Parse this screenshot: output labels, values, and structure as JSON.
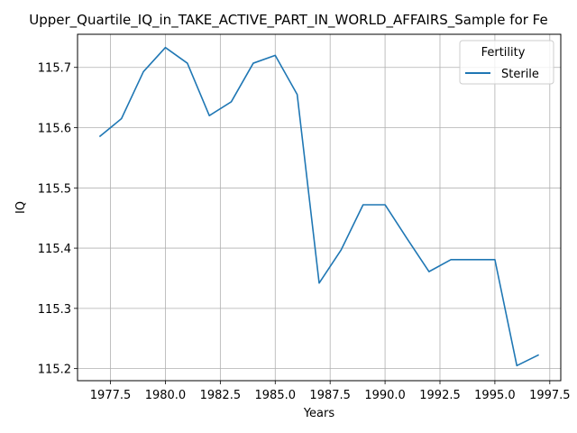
{
  "chart_data": {
    "type": "line",
    "title": "Upper_Quartile_IQ_in_TAKE_ACTIVE_PART_IN_WORLD_AFFAIRS_Sample for Fe",
    "xlabel": "Years",
    "ylabel": "IQ",
    "xlim": [
      1976.0,
      1998.0
    ],
    "ylim": [
      115.18,
      115.755
    ],
    "xticks": [
      1977.5,
      1980.0,
      1982.5,
      1985.0,
      1987.5,
      1990.0,
      1992.5,
      1995.0,
      1997.5
    ],
    "xtick_labels": [
      "1977.5",
      "1980.0",
      "1982.5",
      "1985.0",
      "1987.5",
      "1990.0",
      "1992.5",
      "1995.0",
      "1997.5"
    ],
    "yticks": [
      115.2,
      115.3,
      115.4,
      115.5,
      115.6,
      115.7
    ],
    "ytick_labels": [
      "115.2",
      "115.3",
      "115.4",
      "115.5",
      "115.6",
      "115.7"
    ],
    "grid": true,
    "legend": {
      "title": "Fertility",
      "placement": "top-right"
    },
    "series": [
      {
        "name": "Sterile",
        "color": "#1f77b4",
        "x": [
          1977,
          1978,
          1979,
          1980,
          1981,
          1982,
          1983,
          1984,
          1985,
          1986,
          1987,
          1988,
          1989,
          1990,
          1991,
          1992,
          1993,
          1994,
          1995,
          1996,
          1997
        ],
        "y": [
          115.585,
          115.615,
          115.693,
          115.733,
          115.707,
          115.62,
          115.643,
          115.707,
          115.72,
          115.655,
          115.342,
          115.397,
          115.472,
          115.472,
          115.416,
          115.361,
          115.381,
          115.381,
          115.381,
          115.205,
          115.223
        ]
      }
    ]
  }
}
